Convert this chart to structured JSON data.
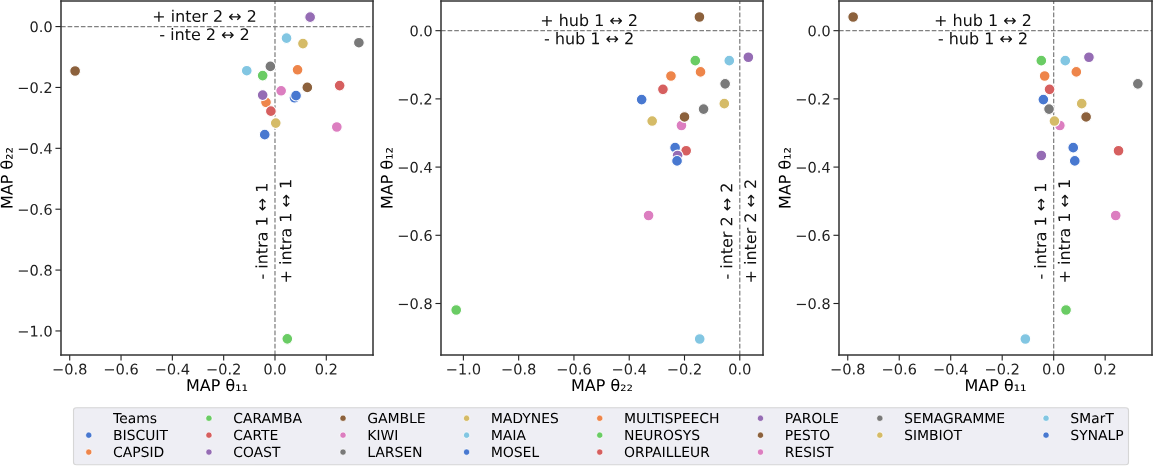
{
  "chart_data": [
    {
      "type": "scatter",
      "xlabel": "MAP θ₁₁",
      "ylabel": "MAP θ₂₂",
      "marker": "circle",
      "legend": "bottom",
      "legend_title": "Teams",
      "xlim": [
        -0.834,
        0.382
      ],
      "ylim": [
        -1.079,
        0.084
      ],
      "xticks": [
        {
          "value": -0.8,
          "label": "−0.8"
        },
        {
          "value": -0.6,
          "label": "−0.6"
        },
        {
          "value": -0.4,
          "label": "−0.4"
        },
        {
          "value": -0.2,
          "label": "−0.2"
        },
        {
          "value": 0.0,
          "label": "0.0"
        },
        {
          "value": 0.2,
          "label": "0.2"
        }
      ],
      "yticks": [
        {
          "value": 0.0,
          "label": "0.0"
        },
        {
          "value": -0.2,
          "label": "−0.2"
        },
        {
          "value": -0.4,
          "label": "−0.4"
        },
        {
          "value": -0.6,
          "label": "−0.6"
        },
        {
          "value": -0.8,
          "label": "−0.8"
        },
        {
          "value": -1.0,
          "label": "−1.0"
        }
      ],
      "ref_lines": [
        {
          "axis": "y",
          "value": 0,
          "color": "#808080",
          "line_style": "dashed"
        },
        {
          "axis": "x",
          "value": 0,
          "color": "#808080",
          "line_style": "dashed"
        }
      ],
      "annotations": [
        "+ inter 2 ↔ 2",
        "- inte 2 ↔ 2",
        "- intra 1 ↔ 1",
        "+ intra 1 ↔ 1"
      ],
      "series": [
        {
          "name": "BISCUIT",
          "color": "#4878d0",
          "x": [
            -0.04
          ],
          "values": [
            -0.355
          ]
        },
        {
          "name": "CAPSID",
          "color": "#ee854a",
          "x": [
            0.088
          ],
          "values": [
            -0.142
          ]
        },
        {
          "name": "CARAMBA",
          "color": "#6acc64",
          "x": [
            -0.048
          ],
          "values": [
            -0.161
          ]
        },
        {
          "name": "CARTE",
          "color": "#d65f5f",
          "x": [
            0.252
          ],
          "values": [
            -0.194
          ]
        },
        {
          "name": "COAST",
          "color": "#956cb4",
          "x": [
            0.137
          ],
          "values": [
            0.031
          ]
        },
        {
          "name": "GAMBLE",
          "color": "#8c613c",
          "x": [
            -0.779
          ],
          "values": [
            -0.146
          ]
        },
        {
          "name": "KIWI",
          "color": "#dc7ec0",
          "x": [
            0.024
          ],
          "values": [
            -0.211
          ]
        },
        {
          "name": "LARSEN",
          "color": "#797979",
          "x": [
            0.327
          ],
          "values": [
            -0.053
          ]
        },
        {
          "name": "MADYNES",
          "color": "#d5bb67",
          "x": [
            0.109
          ],
          "values": [
            -0.056
          ]
        },
        {
          "name": "MAIA",
          "color": "#82c6e2",
          "x": [
            0.045
          ],
          "values": [
            -0.038
          ]
        },
        {
          "name": "MOSEL",
          "color": "#4878d0",
          "x": [
            0.076
          ],
          "values": [
            -0.234
          ]
        },
        {
          "name": "MULTISPEECH",
          "color": "#ee854a",
          "x": [
            -0.035
          ],
          "values": [
            -0.249
          ]
        },
        {
          "name": "NEUROSYS",
          "color": "#6acc64",
          "x": [
            0.048
          ],
          "values": [
            -1.026
          ]
        },
        {
          "name": "ORPAILLEUR",
          "color": "#d65f5f",
          "x": [
            -0.016
          ],
          "values": [
            -0.278
          ]
        },
        {
          "name": "PAROLE",
          "color": "#956cb4",
          "x": [
            -0.048
          ],
          "values": [
            -0.225
          ]
        },
        {
          "name": "PESTO",
          "color": "#8c613c",
          "x": [
            0.126
          ],
          "values": [
            -0.2
          ]
        },
        {
          "name": "RESIST",
          "color": "#dc7ec0",
          "x": [
            0.241
          ],
          "values": [
            -0.33
          ]
        },
        {
          "name": "SEMAGRAMME",
          "color": "#797979",
          "x": [
            -0.018
          ],
          "values": [
            -0.131
          ]
        },
        {
          "name": "SIMBIOT",
          "color": "#d5bb67",
          "x": [
            0.003
          ],
          "values": [
            -0.317
          ]
        },
        {
          "name": "SMarT",
          "color": "#82c6e2",
          "x": [
            -0.11
          ],
          "values": [
            -0.145
          ]
        },
        {
          "name": "SYNALP",
          "color": "#4878d0",
          "x": [
            0.082
          ],
          "values": [
            -0.227
          ]
        }
      ]
    },
    {
      "type": "scatter",
      "xlabel": "MAP θ₂₂",
      "ylabel": "MAP θ₁₂",
      "marker": "circle",
      "xlim": [
        -1.081,
        0.084
      ],
      "ylim": [
        -0.951,
        0.087
      ],
      "xticks": [
        {
          "value": -1.0,
          "label": "−1.0"
        },
        {
          "value": -0.8,
          "label": "−0.8"
        },
        {
          "value": -0.6,
          "label": "−0.6"
        },
        {
          "value": -0.4,
          "label": "−0.4"
        },
        {
          "value": -0.2,
          "label": "−0.2"
        },
        {
          "value": 0.0,
          "label": "0.0"
        }
      ],
      "yticks": [
        {
          "value": 0.0,
          "label": "0.0"
        },
        {
          "value": -0.2,
          "label": "−0.2"
        },
        {
          "value": -0.4,
          "label": "−0.4"
        },
        {
          "value": -0.6,
          "label": "−0.6"
        },
        {
          "value": -0.8,
          "label": "−0.8"
        }
      ],
      "ref_lines": [
        {
          "axis": "y",
          "value": 0,
          "color": "#808080",
          "line_style": "dashed"
        },
        {
          "axis": "x",
          "value": 0,
          "color": "#808080",
          "line_style": "dashed"
        }
      ],
      "annotations": [
        "+ hub 1 ↔ 2",
        "- hub 1 ↔ 2",
        "- inter 2 ↔ 2",
        "+ inter 2 ↔ 2"
      ],
      "series": [
        {
          "color": "#4878d0",
          "x": [
            -0.355
          ],
          "values": [
            -0.202
          ]
        },
        {
          "color": "#ee854a",
          "x": [
            -0.142
          ],
          "values": [
            -0.121
          ]
        },
        {
          "color": "#6acc64",
          "x": [
            -0.161
          ],
          "values": [
            -0.088
          ]
        },
        {
          "color": "#d65f5f",
          "x": [
            -0.194
          ],
          "values": [
            -0.352
          ]
        },
        {
          "color": "#956cb4",
          "x": [
            0.031
          ],
          "values": [
            -0.078
          ]
        },
        {
          "color": "#8c613c",
          "x": [
            -0.146
          ],
          "values": [
            0.04
          ]
        },
        {
          "color": "#dc7ec0",
          "x": [
            -0.211
          ],
          "values": [
            -0.278
          ]
        },
        {
          "color": "#797979",
          "x": [
            -0.053
          ],
          "values": [
            -0.156
          ]
        },
        {
          "color": "#d5bb67",
          "x": [
            -0.056
          ],
          "values": [
            -0.214
          ]
        },
        {
          "color": "#82c6e2",
          "x": [
            -0.038
          ],
          "values": [
            -0.088
          ]
        },
        {
          "color": "#4878d0",
          "x": [
            -0.234
          ],
          "values": [
            -0.343
          ]
        },
        {
          "color": "#ee854a",
          "x": [
            -0.249
          ],
          "values": [
            -0.133
          ]
        },
        {
          "color": "#6acc64",
          "x": [
            -1.026
          ],
          "values": [
            -0.819
          ]
        },
        {
          "color": "#d65f5f",
          "x": [
            -0.278
          ],
          "values": [
            -0.172
          ]
        },
        {
          "color": "#956cb4",
          "x": [
            -0.225
          ],
          "values": [
            -0.366
          ]
        },
        {
          "color": "#8c613c",
          "x": [
            -0.2
          ],
          "values": [
            -0.253
          ]
        },
        {
          "color": "#dc7ec0",
          "x": [
            -0.33
          ],
          "values": [
            -0.542
          ]
        },
        {
          "color": "#797979",
          "x": [
            -0.131
          ],
          "values": [
            -0.23
          ]
        },
        {
          "color": "#d5bb67",
          "x": [
            -0.317
          ],
          "values": [
            -0.265
          ]
        },
        {
          "color": "#82c6e2",
          "x": [
            -0.145
          ],
          "values": [
            -0.904
          ]
        },
        {
          "color": "#4878d0",
          "x": [
            -0.227
          ],
          "values": [
            -0.382
          ]
        }
      ]
    },
    {
      "type": "scatter",
      "xlabel": "MAP θ₁₁",
      "ylabel": "MAP θ₁₂",
      "marker": "circle",
      "xlim": [
        -0.834,
        0.382
      ],
      "ylim": [
        -0.951,
        0.087
      ],
      "xticks": [
        {
          "value": -0.8,
          "label": "−0.8"
        },
        {
          "value": -0.6,
          "label": "−0.6"
        },
        {
          "value": -0.4,
          "label": "−0.4"
        },
        {
          "value": -0.2,
          "label": "−0.2"
        },
        {
          "value": 0.0,
          "label": "0.0"
        },
        {
          "value": 0.2,
          "label": "0.2"
        }
      ],
      "yticks": [
        {
          "value": 0.0,
          "label": "0.0"
        },
        {
          "value": -0.2,
          "label": "−0.2"
        },
        {
          "value": -0.4,
          "label": "−0.4"
        },
        {
          "value": -0.6,
          "label": "−0.6"
        },
        {
          "value": -0.8,
          "label": "−0.8"
        }
      ],
      "ref_lines": [
        {
          "axis": "y",
          "value": 0,
          "color": "#808080",
          "line_style": "dashed"
        },
        {
          "axis": "x",
          "value": 0,
          "color": "#808080",
          "line_style": "dashed"
        }
      ],
      "annotations": [
        "+ hub 1 ↔ 2",
        "- hub 1 ↔ 2",
        "- intra 1 ↔ 1",
        "+ intra 1 ↔ 1"
      ],
      "series": [
        {
          "color": "#4878d0",
          "x": [
            -0.04
          ],
          "values": [
            -0.202
          ]
        },
        {
          "color": "#ee854a",
          "x": [
            0.088
          ],
          "values": [
            -0.121
          ]
        },
        {
          "color": "#6acc64",
          "x": [
            -0.048
          ],
          "values": [
            -0.088
          ]
        },
        {
          "color": "#d65f5f",
          "x": [
            0.252
          ],
          "values": [
            -0.352
          ]
        },
        {
          "color": "#956cb4",
          "x": [
            0.137
          ],
          "values": [
            -0.078
          ]
        },
        {
          "color": "#8c613c",
          "x": [
            -0.779
          ],
          "values": [
            0.04
          ]
        },
        {
          "color": "#dc7ec0",
          "x": [
            0.024
          ],
          "values": [
            -0.278
          ]
        },
        {
          "color": "#797979",
          "x": [
            0.327
          ],
          "values": [
            -0.156
          ]
        },
        {
          "color": "#d5bb67",
          "x": [
            0.109
          ],
          "values": [
            -0.214
          ]
        },
        {
          "color": "#82c6e2",
          "x": [
            0.045
          ],
          "values": [
            -0.088
          ]
        },
        {
          "color": "#4878d0",
          "x": [
            0.076
          ],
          "values": [
            -0.343
          ]
        },
        {
          "color": "#ee854a",
          "x": [
            -0.035
          ],
          "values": [
            -0.133
          ]
        },
        {
          "color": "#6acc64",
          "x": [
            0.048
          ],
          "values": [
            -0.819
          ]
        },
        {
          "color": "#d65f5f",
          "x": [
            -0.016
          ],
          "values": [
            -0.172
          ]
        },
        {
          "color": "#956cb4",
          "x": [
            -0.048
          ],
          "values": [
            -0.366
          ]
        },
        {
          "color": "#8c613c",
          "x": [
            0.126
          ],
          "values": [
            -0.253
          ]
        },
        {
          "color": "#dc7ec0",
          "x": [
            0.241
          ],
          "values": [
            -0.542
          ]
        },
        {
          "color": "#797979",
          "x": [
            -0.018
          ],
          "values": [
            -0.23
          ]
        },
        {
          "color": "#d5bb67",
          "x": [
            0.003
          ],
          "values": [
            -0.265
          ]
        },
        {
          "color": "#82c6e2",
          "x": [
            -0.11
          ],
          "values": [
            -0.904
          ]
        },
        {
          "color": "#4878d0",
          "x": [
            0.082
          ],
          "values": [
            -0.382
          ]
        }
      ]
    }
  ]
}
